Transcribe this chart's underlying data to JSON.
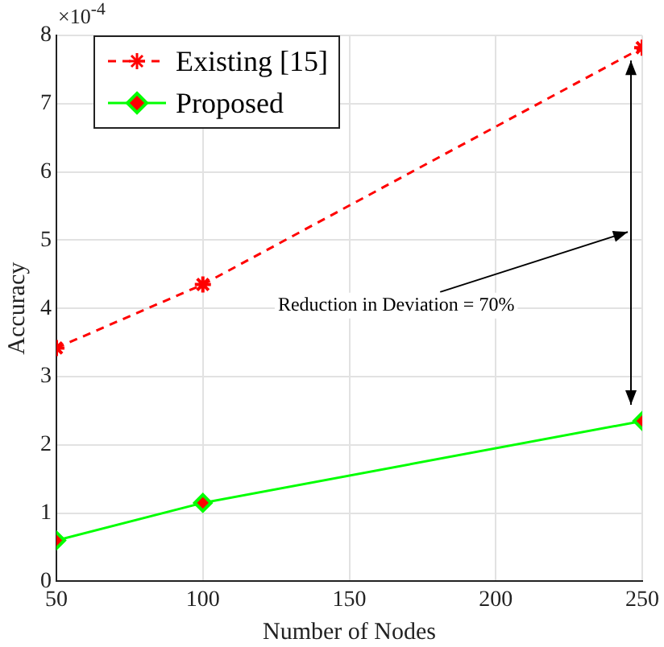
{
  "chart_data": {
    "type": "line",
    "xlabel": "Number of Nodes",
    "ylabel": "Accuracy",
    "x": [
      50,
      100,
      250
    ],
    "series": [
      {
        "name": "Existing [15]",
        "color": "#ff0000",
        "values": [
          3.42,
          4.35,
          7.82
        ],
        "marker": "cross",
        "line_style": "dashed"
      },
      {
        "name": "Proposed",
        "color": "#00ff00",
        "values": [
          0.6,
          1.15,
          2.35
        ],
        "marker": "diamond",
        "line_style": "solid"
      }
    ],
    "xlim": [
      50,
      250
    ],
    "xticks": [
      50,
      100,
      150,
      200,
      250
    ],
    "ylim": [
      0,
      8
    ],
    "yticks": [
      0,
      1,
      2,
      3,
      4,
      5,
      6,
      7,
      8
    ],
    "annotations": [
      "×10$^{-4}$",
      "Reduction in Deviation = 70%"
    ],
    "grid": true,
    "legend": "top left"
  }
}
